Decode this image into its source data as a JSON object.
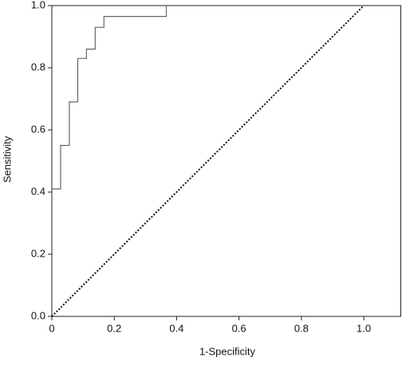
{
  "chart_data": {
    "type": "line",
    "x_label": "1-Specificity",
    "y_label": "Sensitivity",
    "xlim": [
      0,
      1.12
    ],
    "ylim": [
      0,
      1
    ],
    "xticks": [
      0,
      0.2,
      0.4,
      0.6,
      0.8,
      {
        "value": 1,
        "label": "1.0"
      }
    ],
    "yticks": [
      {
        "value": 0,
        "label": "0.0"
      },
      0.2,
      0.4,
      0.6,
      0.8,
      {
        "value": 1,
        "label": "1.0"
      }
    ],
    "series": [
      {
        "color": "#666666",
        "dash": "solid",
        "x": [
          0,
          0.028,
          0.028,
          0.056,
          0.056,
          0.083,
          0.083,
          0.111,
          0.111,
          0.139,
          0.139,
          0.167,
          0.167,
          0.367,
          0.367
        ],
        "values": [
          0.41,
          0.41,
          0.55,
          0.55,
          0.69,
          0.69,
          0.83,
          0.83,
          0.86,
          0.86,
          0.93,
          0.93,
          0.965,
          0.965,
          1
        ]
      },
      {
        "color": "#111111",
        "dash": "dotted",
        "x": [
          0,
          1
        ],
        "values": [
          0,
          1
        ]
      }
    ]
  }
}
